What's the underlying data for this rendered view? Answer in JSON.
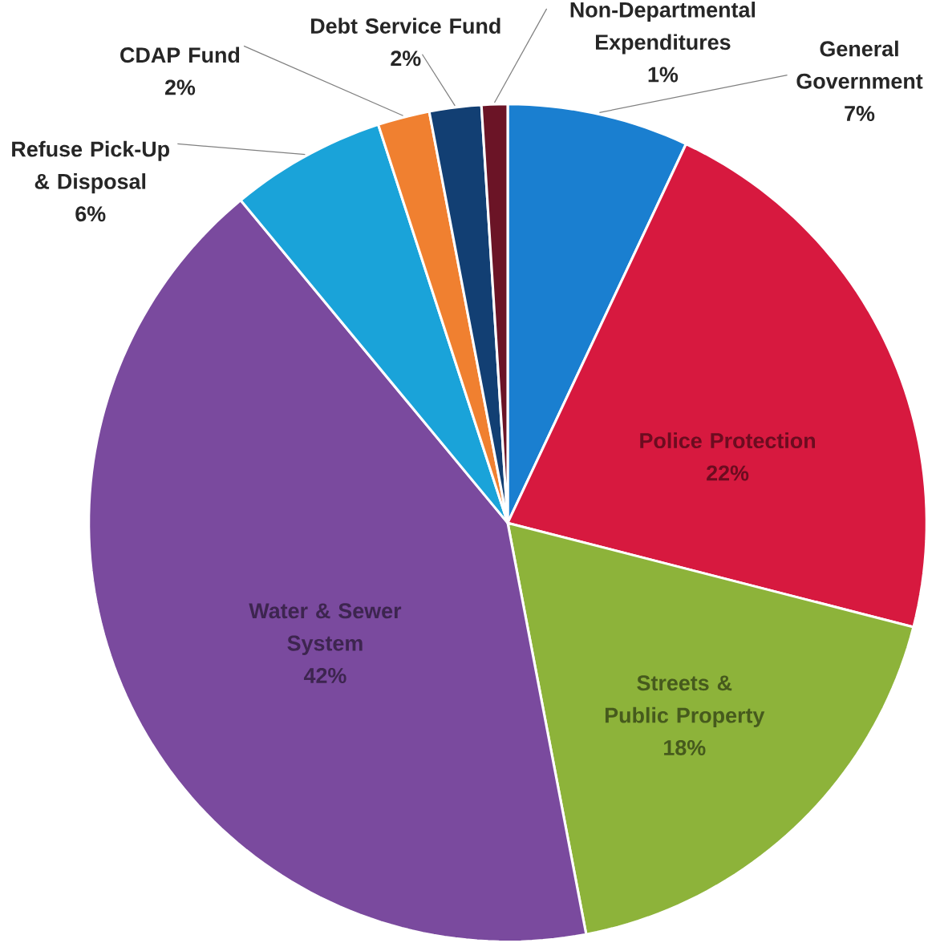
{
  "chart_data": {
    "type": "pie",
    "categories": [
      "General Government",
      "Police Protection",
      "Streets & Public Property",
      "Water & Sewer System",
      "Refuse Pick-Up & Disposal",
      "CDAP Fund",
      "Debt Service Fund",
      "Non-Departmental Expenditures"
    ],
    "values": [
      7,
      22,
      18,
      42,
      6,
      2,
      2,
      1
    ],
    "colors": [
      "#1a7fd0",
      "#d7193f",
      "#8db33a",
      "#7a4a9e",
      "#1aa3d9",
      "#f08030",
      "#123f73",
      "#6b1426"
    ],
    "value_labels": [
      "7%",
      "22%",
      "18%",
      "42%",
      "6%",
      "2%",
      "2%",
      "1%"
    ]
  }
}
